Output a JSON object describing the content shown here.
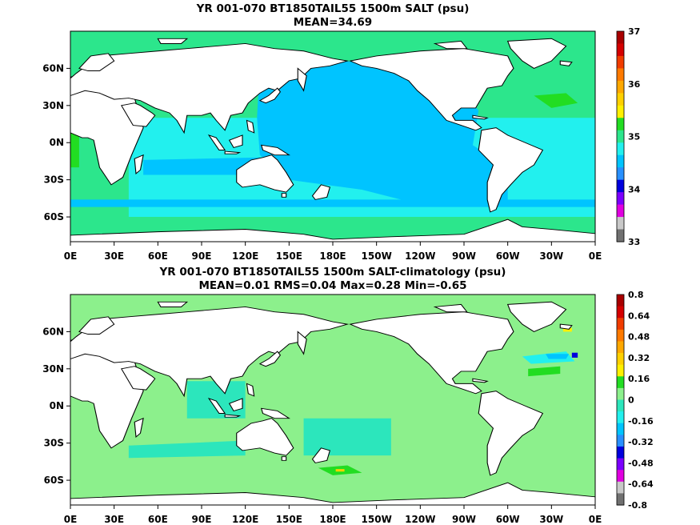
{
  "chart_data": [
    {
      "type": "heatmap",
      "title": "YR 001-070 BT1850TAIL55 1500m SALT (psu)",
      "subtitle": "MEAN=34.69",
      "x_ticks": [
        "0E",
        "30E",
        "60E",
        "90E",
        "120E",
        "150E",
        "180E",
        "150W",
        "120W",
        "90W",
        "60W",
        "30W",
        "0E"
      ],
      "y_ticks": [
        "60N",
        "30N",
        "0N",
        "30S",
        "60S"
      ],
      "colorbar": {
        "labels": [
          "37",
          "36",
          "35",
          "34",
          "33"
        ],
        "colors": [
          "#a80000",
          "#d40000",
          "#f03c00",
          "#ff7a00",
          "#ffa800",
          "#ffd000",
          "#fff000",
          "#22dd22",
          "#2ce68c",
          "#22f0ee",
          "#00c4ff",
          "#2890ff",
          "#0000dd",
          "#7b00ff",
          "#e000e0",
          "#c8c8c8",
          "#707070"
        ]
      }
    },
    {
      "type": "heatmap",
      "title": "YR 001-070 BT1850TAIL55 1500m SALT-climatology (psu)",
      "subtitle": "MEAN=0.01   RMS=0.04   Max=0.28   Min=-0.65",
      "x_ticks": [
        "0E",
        "30E",
        "60E",
        "90E",
        "120E",
        "150E",
        "180E",
        "150W",
        "120W",
        "90W",
        "60W",
        "30W",
        "0E"
      ],
      "y_ticks": [
        "60N",
        "30N",
        "0N",
        "30S",
        "60S"
      ],
      "colorbar": {
        "labels": [
          "0.8",
          "0.64",
          "0.48",
          "0.32",
          "0.16",
          "0",
          "-0.16",
          "-0.32",
          "-0.48",
          "-0.64",
          "-0.8"
        ],
        "colors": [
          "#a80000",
          "#d40000",
          "#f03c00",
          "#ff7a00",
          "#ffa800",
          "#ffd000",
          "#fff000",
          "#22dd22",
          "#8cf08c",
          "#2ce6bc",
          "#22f0ee",
          "#00c4ff",
          "#2890ff",
          "#0000dd",
          "#7b00ff",
          "#e000e0",
          "#c8c8c8",
          "#707070"
        ]
      }
    }
  ]
}
